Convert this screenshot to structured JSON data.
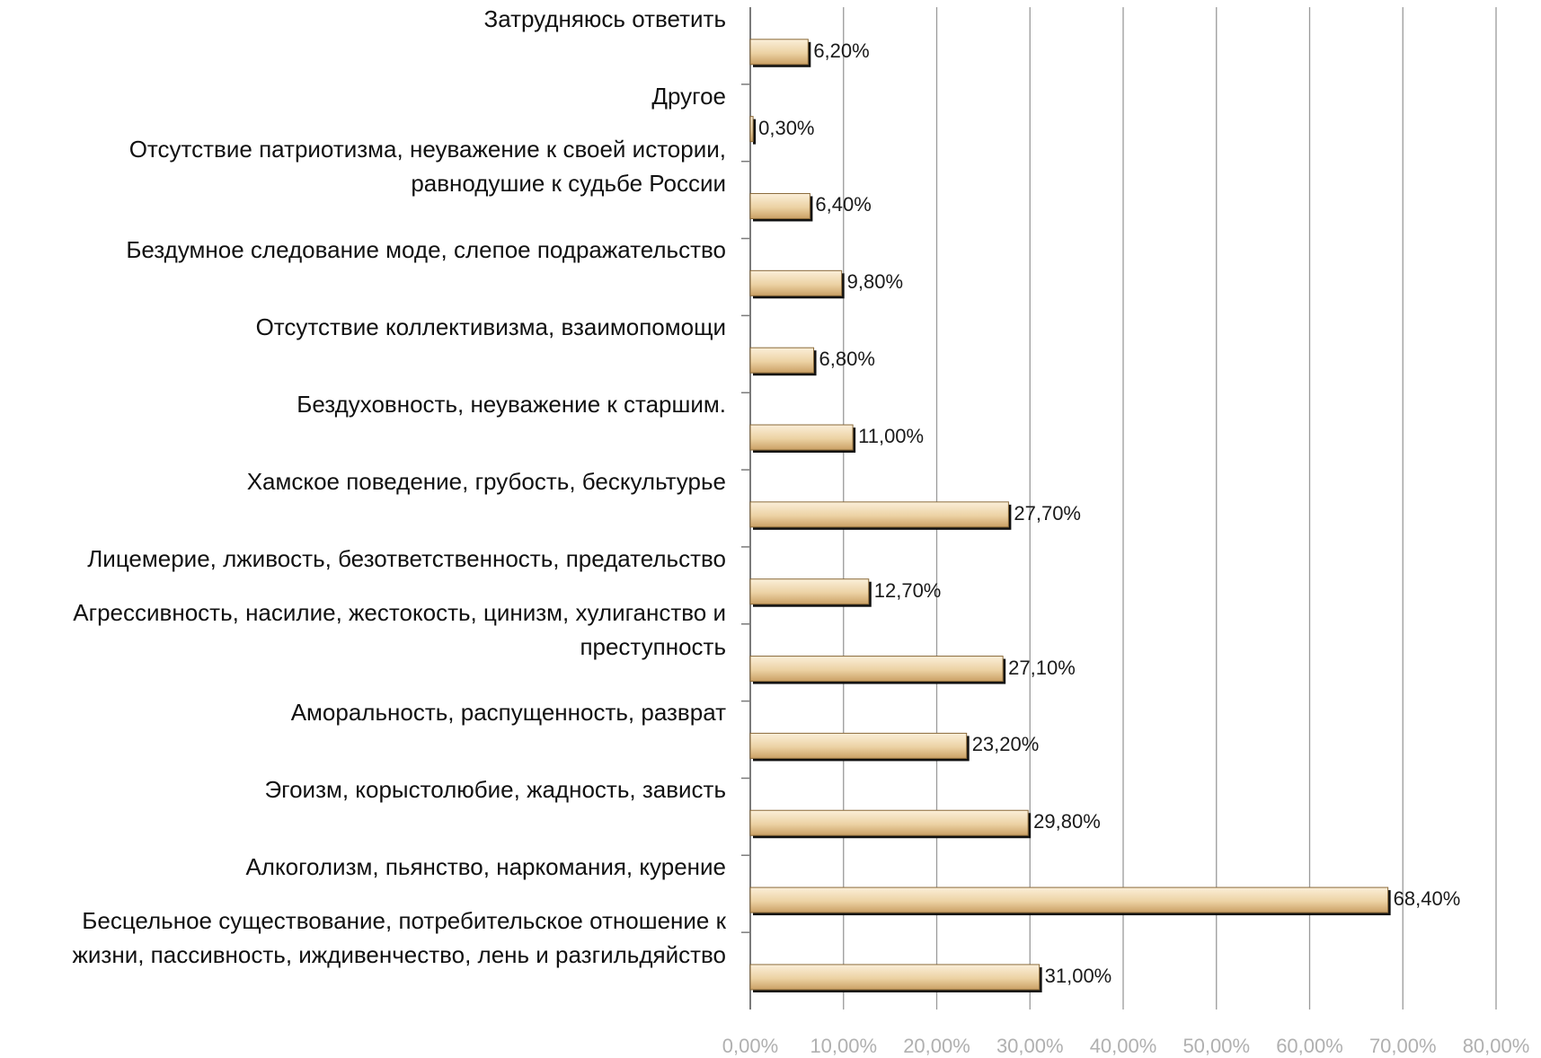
{
  "chart_data": {
    "type": "bar",
    "orientation": "horizontal",
    "categories": [
      [
        "Затрудняюсь ответить"
      ],
      [
        "Другое"
      ],
      [
        "Отсутствие патриотизма, неуважение к своей истории,",
        "равнодушие к  судьбе России"
      ],
      [
        "Бездумное следование моде, слепое подражательство"
      ],
      [
        "Отсутствие коллективизма, взаимопомощи"
      ],
      [
        "Бездуховность, неуважение к старшим."
      ],
      [
        "Хамское поведение, грубость, бескультурье"
      ],
      [
        "Лицемерие, лживость, безответственность, предательство"
      ],
      [
        "Агрессивность, насилие, жестокость, цинизм, хулиганство и",
        "преступность"
      ],
      [
        "Аморальность, распущенность, разврат"
      ],
      [
        "Эгоизм, корыстолюбие, жадность, зависть"
      ],
      [
        "Алкоголизм, пьянство, наркомания, курение"
      ],
      [
        "Бесцельное существование, потребительское отношение к",
        "жизни, пассивность, иждивенчество, лень и разгильдяйство"
      ]
    ],
    "values": [
      6.2,
      0.3,
      6.4,
      9.8,
      6.8,
      11.0,
      27.7,
      12.7,
      27.1,
      23.2,
      29.8,
      68.4,
      31.0
    ],
    "value_labels": [
      "6,20%",
      "0,30%",
      "6,40%",
      "9,80%",
      "6,80%",
      "11,00%",
      "27,70%",
      "12,70%",
      "27,10%",
      "23,20%",
      "29,80%",
      "68,40%",
      "31,00%"
    ],
    "xlim": [
      0,
      80
    ],
    "x_ticks": [
      0,
      10,
      20,
      30,
      40,
      50,
      60,
      70,
      80
    ],
    "x_tick_labels": [
      "0,00%",
      "10,00%",
      "20,00%",
      "30,00%",
      "40,00%",
      "50,00%",
      "60,00%",
      "70,00%",
      "80,00%"
    ],
    "grid": true,
    "colors": {
      "bar_light": "#fbefd9",
      "bar_mid": "#e8c996",
      "bar_dark": "#c49a5a",
      "bar_edge": "#8a6a3a",
      "bar_shadow": "#111111",
      "gridline": "#9a9a9a",
      "tick_text": "#b0b0b0"
    }
  }
}
